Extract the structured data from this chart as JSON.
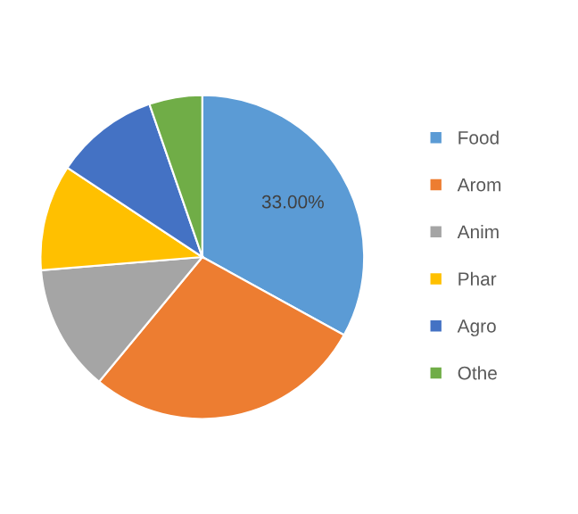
{
  "chart_data": {
    "type": "pie",
    "categories": [
      "Food",
      "Arom",
      "Anim",
      "Phar",
      "Agro",
      "Othe"
    ],
    "values": [
      33,
      28.0,
      12.7,
      10.6,
      10.4,
      5.3
    ],
    "colors": [
      "#5b9bd5",
      "#ed7d31",
      "#a5a5a5",
      "#ffc000",
      "#4472c4",
      "#70ad47"
    ],
    "value_labels": [
      "33.00%",
      null,
      null,
      null,
      null,
      null
    ],
    "legend": "right"
  }
}
